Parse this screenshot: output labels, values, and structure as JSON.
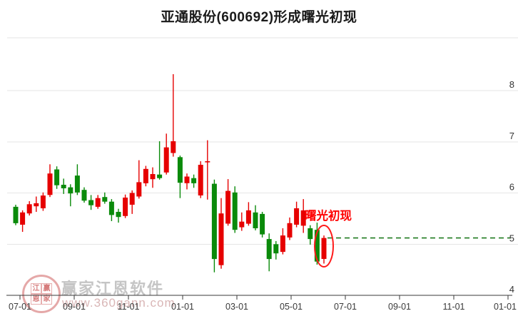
{
  "header": {
    "title": "亚通股份(600692)形成曙光初现"
  },
  "chart_data": {
    "type": "candlestick",
    "title": "亚通股份(600692)形成曙光初现",
    "x_tick_labels": [
      "07-01",
      "09-01",
      "11-01",
      "01-01",
      "03-01",
      "05-01",
      "07-01",
      "09-01",
      "11-01",
      "01-01"
    ],
    "y_tick_labels": [
      "4",
      "5",
      "6",
      "7",
      "8"
    ],
    "ylim": [
      4,
      9
    ],
    "grid": true,
    "up_color": "#e60000",
    "down_color": "#0a8a0a",
    "candle_format": [
      "open",
      "high",
      "low",
      "close"
    ],
    "candles": [
      [
        5.73,
        5.77,
        5.37,
        5.41
      ],
      [
        5.38,
        5.66,
        5.24,
        5.62
      ],
      [
        5.6,
        5.84,
        5.56,
        5.78
      ],
      [
        5.74,
        5.93,
        5.63,
        5.8
      ],
      [
        5.7,
        6.01,
        5.65,
        5.95
      ],
      [
        5.96,
        6.56,
        5.92,
        6.38
      ],
      [
        6.46,
        6.52,
        6.08,
        6.15
      ],
      [
        6.16,
        6.28,
        5.98,
        6.09
      ],
      [
        6.11,
        6.17,
        5.74,
        5.99
      ],
      [
        6.34,
        6.56,
        5.96,
        6.01
      ],
      [
        6.06,
        6.11,
        5.81,
        5.85
      ],
      [
        5.86,
        5.96,
        5.67,
        5.76
      ],
      [
        5.73,
        5.96,
        5.69,
        5.9
      ],
      [
        5.92,
        6.01,
        5.79,
        5.83
      ],
      [
        5.83,
        5.88,
        5.45,
        5.57
      ],
      [
        5.63,
        5.69,
        5.42,
        5.53
      ],
      [
        5.55,
        5.97,
        5.51,
        5.91
      ],
      [
        5.77,
        6.05,
        5.59,
        6.0
      ],
      [
        5.93,
        6.64,
        5.89,
        6.21
      ],
      [
        6.19,
        6.53,
        6.13,
        6.47
      ],
      [
        6.27,
        6.5,
        6.1,
        6.37
      ],
      [
        6.36,
        7.01,
        6.26,
        6.29
      ],
      [
        6.4,
        7.16,
        6.36,
        6.89
      ],
      [
        6.78,
        8.32,
        6.71,
        7.01
      ],
      [
        6.7,
        6.73,
        5.9,
        6.2
      ],
      [
        6.19,
        6.38,
        6.07,
        6.32
      ],
      [
        6.29,
        6.36,
        6.1,
        6.19
      ],
      [
        5.95,
        6.62,
        5.9,
        6.55
      ],
      [
        6.6,
        7.03,
        5.87,
        6.62
      ],
      [
        6.18,
        6.26,
        4.45,
        4.71
      ],
      [
        4.59,
        5.9,
        4.52,
        5.6
      ],
      [
        5.4,
        6.27,
        5.36,
        6.04
      ],
      [
        6.01,
        6.13,
        5.22,
        5.28
      ],
      [
        5.33,
        5.62,
        5.26,
        5.44
      ],
      [
        5.4,
        5.82,
        5.36,
        5.66
      ],
      [
        5.62,
        5.76,
        5.27,
        5.31
      ],
      [
        5.59,
        5.63,
        5.13,
        5.19
      ],
      [
        5.1,
        5.21,
        4.47,
        4.71
      ],
      [
        5.0,
        5.06,
        4.7,
        4.82
      ],
      [
        4.85,
        5.31,
        4.8,
        5.17
      ],
      [
        5.13,
        5.52,
        5.08,
        5.41
      ],
      [
        5.38,
        5.83,
        5.33,
        5.7
      ],
      [
        5.36,
        5.88,
        5.22,
        5.66
      ],
      [
        5.31,
        5.37,
        4.99,
        5.1
      ],
      [
        5.28,
        5.42,
        4.6,
        4.66
      ],
      [
        4.71,
        5.17,
        4.62,
        5.12
      ]
    ],
    "pattern_annotation": {
      "label": "曙光初现",
      "color": "#ff0000",
      "highlighted_candle_index": 45
    },
    "reference_line": {
      "value": 5.12,
      "color": "#1e7a1e",
      "style": "dashed"
    }
  },
  "watermark": {
    "brand": "赢家江恩软件",
    "url": "www.360gann.com",
    "seal_chars": [
      "江",
      "赢",
      "恩",
      "家"
    ]
  }
}
